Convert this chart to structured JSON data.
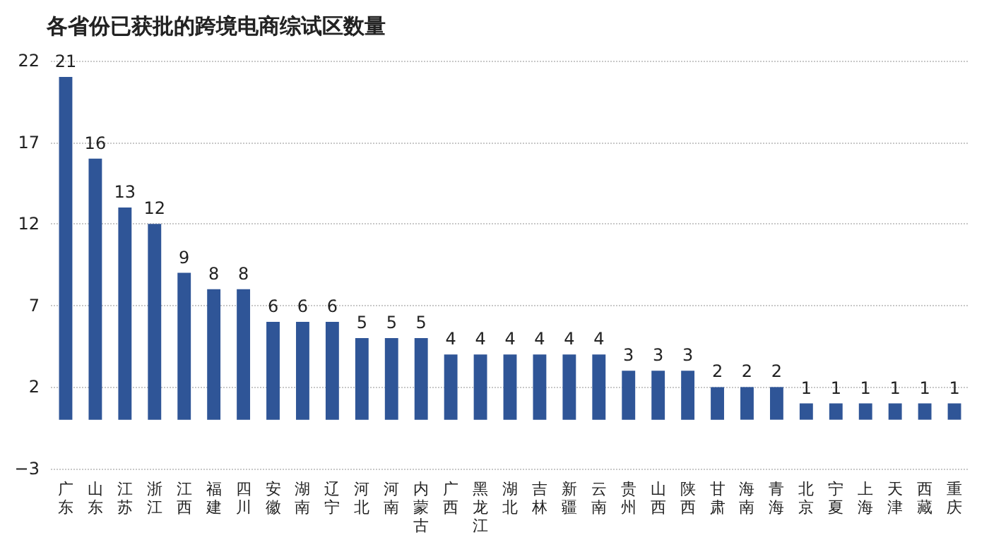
{
  "chart_data": {
    "type": "bar",
    "title": "各省份已获批的跨境电商综试区数量",
    "categories": [
      "广东",
      "山东",
      "江苏",
      "浙江",
      "江西",
      "福建",
      "四川",
      "安徽",
      "湖南",
      "辽宁",
      "河北",
      "河南",
      "内蒙古",
      "广西",
      "黑龙江",
      "湖北",
      "吉林",
      "新疆",
      "云南",
      "贵州",
      "山西",
      "陕西",
      "甘肃",
      "海南",
      "青海",
      "北京",
      "宁夏",
      "上海",
      "天津",
      "西藏",
      "重庆"
    ],
    "values": [
      21,
      16,
      13,
      12,
      9,
      8,
      8,
      6,
      6,
      6,
      5,
      5,
      5,
      4,
      4,
      4,
      4,
      4,
      4,
      3,
      3,
      3,
      2,
      2,
      2,
      1,
      1,
      1,
      1,
      1,
      1
    ],
    "color": "#2f5597",
    "ylim": [
      -3,
      22
    ],
    "yticks": [
      -3,
      2,
      7,
      12,
      17,
      22
    ],
    "grid": "y",
    "data_labels": true
  }
}
